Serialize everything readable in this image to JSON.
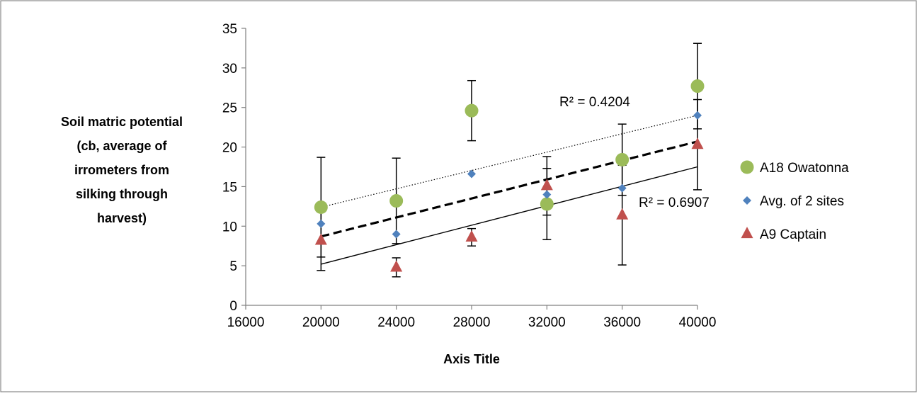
{
  "colors": {
    "owatonna": "#9BBB59",
    "avg": "#4F81BD",
    "captain": "#C0504D",
    "axis": "#808080",
    "line": "#000000"
  },
  "chart_data": {
    "type": "scatter",
    "title": "",
    "xlabel": "Axis Title",
    "ylabel_lines": [
      "Soil matric potential",
      "(cb, average of",
      "irrometers from",
      "silking through",
      "harvest)"
    ],
    "xlim": [
      16000,
      40000
    ],
    "ylim": [
      0,
      35
    ],
    "xticks": [
      "16000",
      "20000",
      "24000",
      "28000",
      "32000",
      "36000",
      "40000"
    ],
    "yticks": [
      "0",
      "5",
      "10",
      "15",
      "20",
      "25",
      "30",
      "35"
    ],
    "grid": false,
    "legend_position": "right",
    "series": [
      {
        "name": "A18 Owatonna",
        "marker": "circle",
        "color": "#9BBB59",
        "x": [
          20000,
          24000,
          28000,
          32000,
          36000,
          40000
        ],
        "y": [
          12.4,
          13.2,
          24.6,
          12.8,
          18.4,
          27.7
        ],
        "error": [
          6.3,
          5.4,
          3.8,
          4.5,
          4.5,
          5.4
        ],
        "trendline": {
          "style": "dotted",
          "start": [
            20000,
            12.4
          ],
          "end": [
            40000,
            24.0
          ],
          "label": "R² = 0.4204"
        }
      },
      {
        "name": "Avg. of 2 sites",
        "marker": "diamond",
        "color": "#4F81BD",
        "x": [
          20000,
          24000,
          28000,
          32000,
          36000,
          40000
        ],
        "y": [
          10.3,
          9.0,
          16.6,
          14.0,
          14.8,
          24.0
        ],
        "trendline": {
          "style": "dashed",
          "start": [
            20000,
            8.7
          ],
          "end": [
            40000,
            20.7
          ],
          "label": ""
        }
      },
      {
        "name": "A9 Captain",
        "marker": "triangle",
        "color": "#C0504D",
        "x": [
          20000,
          24000,
          28000,
          32000,
          36000,
          40000
        ],
        "y": [
          8.2,
          4.8,
          8.6,
          15.1,
          11.4,
          20.3
        ],
        "error": [
          3.8,
          1.2,
          1.1,
          3.7,
          6.3,
          5.7
        ],
        "trendline": {
          "style": "solid",
          "start": [
            20000,
            5.2
          ],
          "end": [
            40000,
            17.5
          ],
          "label": "R² = 0.6907"
        }
      }
    ]
  }
}
